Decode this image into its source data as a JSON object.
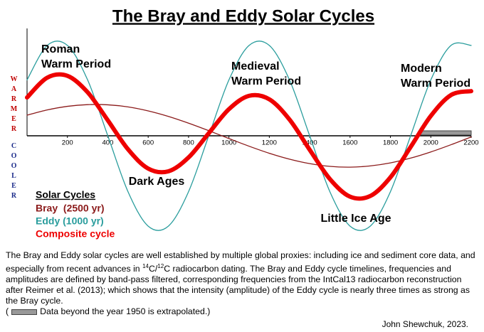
{
  "chart_data": {
    "type": "line",
    "title": "The Bray and Eddy Solar Cycles",
    "x": [
      0,
      100,
      200,
      300,
      400,
      500,
      600,
      700,
      800,
      900,
      1000,
      1100,
      1200,
      1300,
      1400,
      1500,
      1600,
      1700,
      1800,
      1900,
      2000,
      2100,
      2200
    ],
    "xlim": [
      0,
      2200
    ],
    "xticks": [
      200,
      400,
      600,
      800,
      1000,
      1200,
      1400,
      1600,
      1800,
      2000,
      2200
    ],
    "ylim": [
      -1.1,
      1.1
    ],
    "y_axis_labels": {
      "upper": "WARMER",
      "lower": "COOLER"
    },
    "legend_title": "Solar Cycles",
    "series": [
      {
        "name": "Bray  (2500 yr)",
        "color": "#8b1a1a",
        "values": [
          0.217,
          0.272,
          0.31,
          0.328,
          0.326,
          0.304,
          0.262,
          0.204,
          0.133,
          0.054,
          -0.029,
          -0.11,
          -0.184,
          -0.246,
          -0.293,
          -0.322,
          -0.33,
          -0.317,
          -0.285,
          -0.235,
          -0.17,
          -0.094,
          -0.012
        ]
      },
      {
        "name": "Eddy (1000 yr)",
        "color": "#2a9d9d",
        "values": [
          0.588,
          0.951,
          0.951,
          0.588,
          0,
          -0.588,
          -0.951,
          -0.951,
          -0.588,
          0,
          0.588,
          0.951,
          0.951,
          0.588,
          0,
          -0.588,
          -0.951,
          -0.951,
          -0.588,
          0,
          0.588,
          0.951,
          0.951
        ]
      },
      {
        "name": "Composite cycle",
        "color": "#ee0000",
        "values": [
          0.403,
          0.612,
          0.631,
          0.458,
          0.163,
          -0.142,
          -0.345,
          -0.374,
          -0.228,
          0.027,
          0.28,
          0.421,
          0.384,
          0.171,
          -0.147,
          -0.455,
          -0.641,
          -0.634,
          -0.437,
          -0.118,
          0.209,
          0.429,
          0.47
        ]
      }
    ],
    "extrapolated_range": [
      1950,
      2200
    ],
    "annotations": [
      {
        "lines": [
          "Roman",
          "Warm Period"
        ]
      },
      {
        "lines": [
          "Medieval",
          "Warm Period"
        ]
      },
      {
        "lines": [
          "Modern",
          "Warm Period"
        ]
      },
      {
        "lines": [
          "Dark Ages"
        ]
      },
      {
        "lines": [
          "Little Ice Age"
        ]
      }
    ]
  },
  "caption": {
    "part1": "The Bray and Eddy solar cycles are well established by multiple global proxies: including ice and sediment core data, and especially from recent advances in ",
    "sup1": "14",
    "part2": "C/",
    "sup2": "12",
    "part3": "C radiocarbon dating.  The Bray and Eddy cycle timelines, frequencies and amplitudes are defined by band-pass filtered, corresponding frequencies from the IntCal13 radiocarbon reconstruction after Reimer et al. (2013); which shows that the intensity (amplitude) of the Eddy cycle is nearly three times as strong as the Bray cycle.",
    "note_open": "(",
    "note": "Data beyond the year 1950 is extrapolated.)"
  },
  "credit": "John Shewchuk, 2023."
}
